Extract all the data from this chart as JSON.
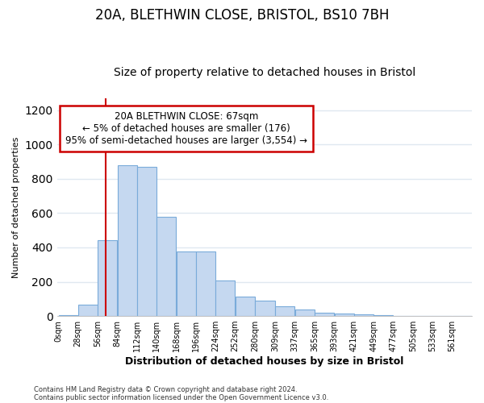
{
  "title1": "20A, BLETHWIN CLOSE, BRISTOL, BS10 7BH",
  "title2": "Size of property relative to detached houses in Bristol",
  "xlabel": "Distribution of detached houses by size in Bristol",
  "ylabel": "Number of detached properties",
  "bin_labels": [
    "0sqm",
    "28sqm",
    "56sqm",
    "84sqm",
    "112sqm",
    "140sqm",
    "168sqm",
    "196sqm",
    "224sqm",
    "252sqm",
    "280sqm",
    "309sqm",
    "337sqm",
    "365sqm",
    "393sqm",
    "421sqm",
    "449sqm",
    "477sqm",
    "505sqm",
    "533sqm",
    "561sqm"
  ],
  "bin_edges": [
    0,
    28,
    56,
    84,
    112,
    140,
    168,
    196,
    224,
    252,
    280,
    309,
    337,
    365,
    393,
    421,
    449,
    477,
    505,
    533,
    561,
    589
  ],
  "bar_values": [
    5,
    65,
    440,
    880,
    870,
    580,
    375,
    375,
    205,
    115,
    90,
    55,
    40,
    20,
    15,
    12,
    5,
    2,
    1,
    1,
    0
  ],
  "bar_color": "#c5d8f0",
  "bar_edge_color": "#7aabda",
  "property_size": 67,
  "vline_color": "#cc0000",
  "ylim": [
    0,
    1270
  ],
  "yticks": [
    0,
    200,
    400,
    600,
    800,
    1000,
    1200
  ],
  "annotation_line1": "20A BLETHWIN CLOSE: 67sqm",
  "annotation_line2": "← 5% of detached houses are smaller (176)",
  "annotation_line3": "95% of semi-detached houses are larger (3,554) →",
  "annotation_box_color": "#cc0000",
  "footer1": "Contains HM Land Registry data © Crown copyright and database right 2024.",
  "footer2": "Contains public sector information licensed under the Open Government Licence v3.0.",
  "bg_color": "#ffffff",
  "plot_bg_color": "#ffffff",
  "grid_color": "#e0e8f0",
  "title1_fontsize": 12,
  "title2_fontsize": 10
}
